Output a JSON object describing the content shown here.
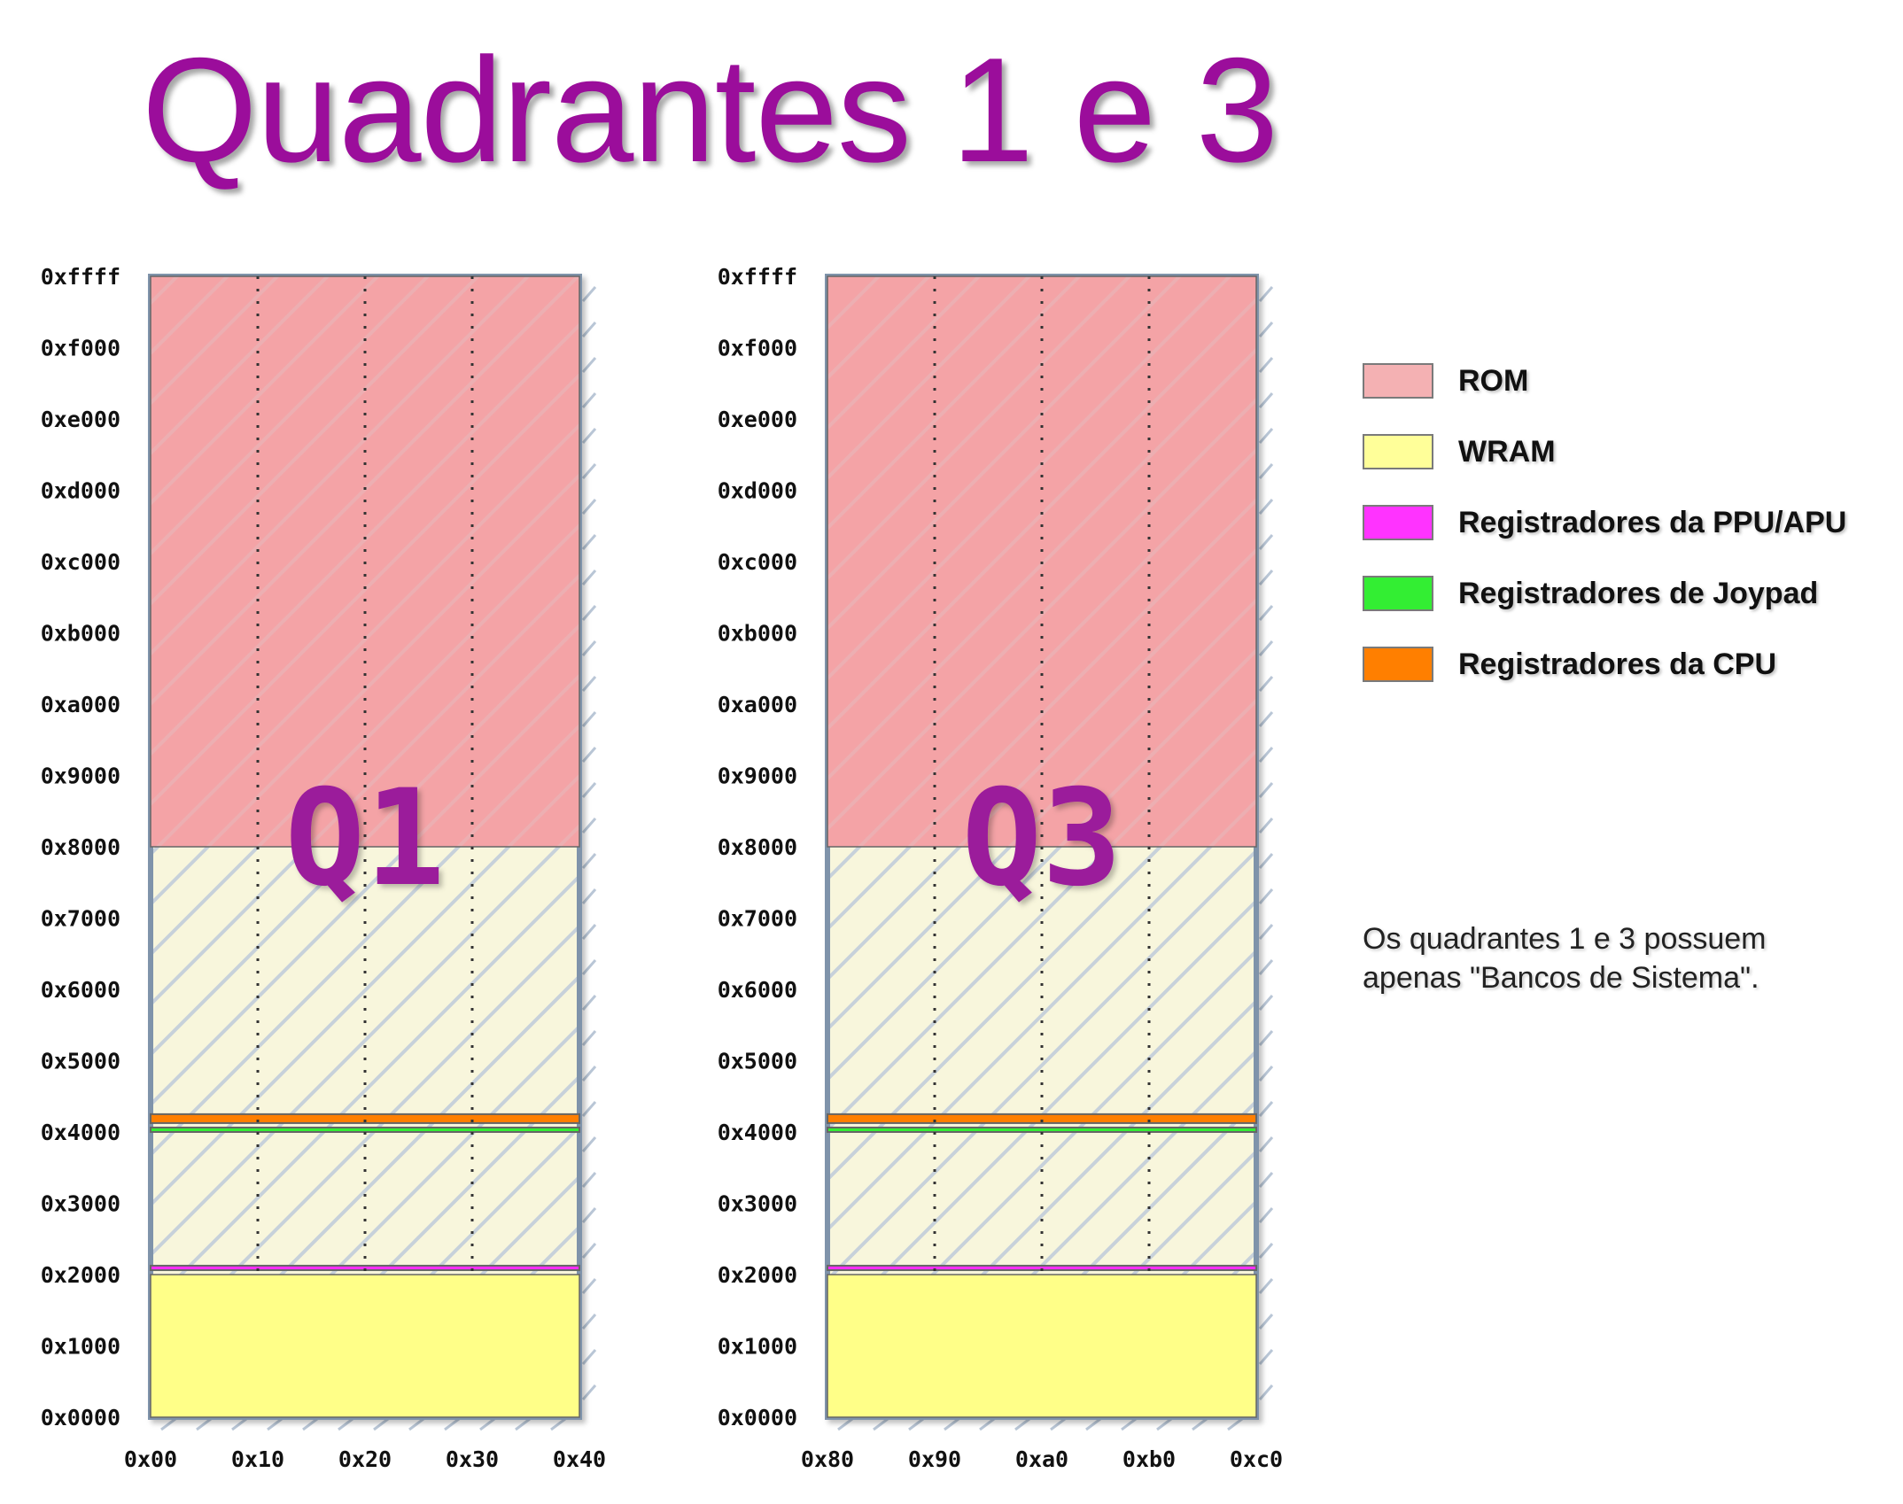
{
  "title": "Quadrantes 1 e 3",
  "address_labels": [
    "0xffff",
    "0xf000",
    "0xe000",
    "0xd000",
    "0xc000",
    "0xb000",
    "0xa000",
    "0x9000",
    "0x8000",
    "0x7000",
    "0x6000",
    "0x5000",
    "0x4000",
    "0x3000",
    "0x2000",
    "0x1000",
    "0x0000"
  ],
  "quadrants": [
    {
      "label": "Q1",
      "bank_labels": [
        "0x00",
        "0x10",
        "0x20",
        "0x30",
        "0x40"
      ]
    },
    {
      "label": "Q3",
      "bank_labels": [
        "0x80",
        "0x90",
        "0xa0",
        "0xb0",
        "0xc0"
      ]
    }
  ],
  "regions": [
    {
      "name": "ROM",
      "start": 32768,
      "end": 65535,
      "color": "#f4a3a6"
    },
    {
      "name": "WRAM-low",
      "start": 0,
      "end": 8192,
      "color": "#ffff88"
    },
    {
      "name": "Registradores da PPU/APU",
      "start": 8448,
      "end": 8703,
      "color": "#ff2cff"
    },
    {
      "name": "Registradores de Joypad",
      "start": 16384,
      "end": 16639,
      "color": "#33ee33"
    },
    {
      "name": "Registradores da CPU",
      "start": 16896,
      "end": 17407,
      "color": "#ff7f00"
    }
  ],
  "legend": [
    {
      "label": "ROM",
      "color": "#f4b1b3"
    },
    {
      "label": "WRAM",
      "color": "#ffff99"
    },
    {
      "label": "Registradores da PPU/APU",
      "color": "#ff33ff"
    },
    {
      "label": "Registradores de Joypad",
      "color": "#33ee33"
    },
    {
      "label": "Registradores da CPU",
      "color": "#ff7f00"
    }
  ],
  "note": "Os quadrantes 1 e 3 possuem apenas \"Bancos de Sistema\"."
}
